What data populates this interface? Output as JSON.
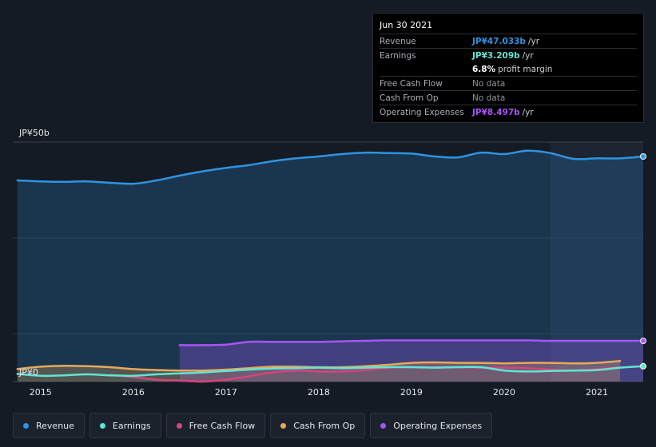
{
  "tooltip": {
    "date": "Jun 30 2021",
    "rows": [
      {
        "label": "Revenue",
        "value": "JP¥47.033b",
        "suffix": "/yr"
      },
      {
        "label": "Earnings",
        "value": "JP¥3.209b",
        "suffix": "/yr"
      },
      {
        "label": "",
        "value": "6.8%",
        "suffix": "profit margin"
      },
      {
        "label": "Free Cash Flow",
        "value": "No data",
        "suffix": ""
      },
      {
        "label": "Cash From Op",
        "value": "No data",
        "suffix": ""
      },
      {
        "label": "Operating Expenses",
        "value": "JP¥8.497b",
        "suffix": "/yr"
      }
    ]
  },
  "legend": [
    {
      "label": "Revenue",
      "color": "#2e94e3"
    },
    {
      "label": "Earnings",
      "color": "#5ee6d6"
    },
    {
      "label": "Free Cash Flow",
      "color": "#d6457a"
    },
    {
      "label": "Cash From Op",
      "color": "#e8a95a"
    },
    {
      "label": "Operating Expenses",
      "color": "#a855f7"
    }
  ],
  "chart_data": {
    "type": "area",
    "y_top_label": "JP¥50b",
    "y_bottom_label": "JP¥0",
    "ylim": [
      0,
      50
    ],
    "xlim": [
      2014.7,
      2021.5
    ],
    "x_ticks": [
      "2015",
      "2016",
      "2017",
      "2018",
      "2019",
      "2020",
      "2021"
    ],
    "highlight_from": 2020.5,
    "series": [
      {
        "name": "Revenue",
        "color": "#2e94e3",
        "fill": true,
        "x": [
          2014.75,
          2015.0,
          2015.25,
          2015.5,
          2015.75,
          2016.0,
          2016.25,
          2016.5,
          2016.75,
          2017.0,
          2017.25,
          2017.5,
          2017.75,
          2018.0,
          2018.25,
          2018.5,
          2018.75,
          2019.0,
          2019.25,
          2019.5,
          2019.75,
          2020.0,
          2020.25,
          2020.5,
          2020.75,
          2021.0,
          2021.25,
          2021.5
        ],
        "y": [
          42.0,
          41.8,
          41.7,
          41.8,
          41.5,
          41.3,
          42.0,
          43.0,
          43.9,
          44.6,
          45.2,
          46.0,
          46.6,
          47.0,
          47.5,
          47.8,
          47.7,
          47.6,
          47.0,
          46.8,
          47.8,
          47.5,
          48.2,
          47.7,
          46.5,
          46.6,
          46.6,
          47.0
        ]
      },
      {
        "name": "Operating Expenses",
        "color": "#a855f7",
        "fill": true,
        "x": [
          2016.5,
          2016.75,
          2017.0,
          2017.25,
          2017.5,
          2017.75,
          2018.0,
          2018.25,
          2018.5,
          2018.75,
          2019.0,
          2019.25,
          2019.5,
          2019.75,
          2020.0,
          2020.25,
          2020.5,
          2020.75,
          2021.0,
          2021.25,
          2021.5
        ],
        "y": [
          7.6,
          7.6,
          7.7,
          8.3,
          8.3,
          8.3,
          8.3,
          8.4,
          8.5,
          8.6,
          8.6,
          8.6,
          8.6,
          8.6,
          8.6,
          8.6,
          8.5,
          8.5,
          8.5,
          8.5,
          8.5
        ]
      },
      {
        "name": "Cash From Op",
        "color": "#e8a95a",
        "fill": true,
        "x": [
          2014.75,
          2015.0,
          2015.25,
          2015.5,
          2015.75,
          2016.0,
          2016.25,
          2016.5,
          2016.75,
          2017.0,
          2017.25,
          2017.5,
          2017.75,
          2018.0,
          2018.25,
          2018.5,
          2018.75,
          2019.0,
          2019.25,
          2019.5,
          2019.75,
          2020.0,
          2020.25,
          2020.5,
          2020.75,
          2021.0,
          2021.25
        ],
        "y": [
          2.6,
          3.1,
          3.3,
          3.2,
          3.0,
          2.6,
          2.4,
          2.3,
          2.3,
          2.5,
          2.8,
          3.1,
          3.1,
          3.0,
          3.0,
          3.2,
          3.5,
          3.9,
          4.0,
          3.9,
          3.9,
          3.8,
          3.9,
          3.9,
          3.8,
          3.9,
          4.3
        ]
      },
      {
        "name": "Free Cash Flow",
        "color": "#d6457a",
        "fill": false,
        "x": [
          2015.75,
          2016.0,
          2016.25,
          2016.5,
          2016.75,
          2017.0,
          2017.25,
          2017.5,
          2017.75,
          2018.0,
          2018.25,
          2018.5,
          2018.75,
          2019.0,
          2019.25,
          2019.5,
          2019.75,
          2020.0,
          2020.25,
          2020.5,
          2020.75,
          2021.0,
          2021.25
        ],
        "y": [
          1.4,
          0.9,
          0.4,
          0.2,
          0.0,
          0.4,
          1.1,
          1.9,
          2.3,
          2.1,
          2.1,
          2.4,
          2.9,
          3.0,
          3.0,
          3.0,
          2.9,
          2.9,
          2.8,
          2.5,
          2.3,
          2.6,
          3.0
        ]
      },
      {
        "name": "Earnings",
        "color": "#5ee6d6",
        "fill": false,
        "x": [
          2014.75,
          2015.0,
          2015.25,
          2015.5,
          2015.75,
          2016.0,
          2016.25,
          2016.5,
          2016.75,
          2017.0,
          2017.25,
          2017.5,
          2017.75,
          2018.0,
          2018.25,
          2018.5,
          2018.75,
          2019.0,
          2019.25,
          2019.5,
          2019.75,
          2020.0,
          2020.25,
          2020.5,
          2020.75,
          2021.0,
          2021.25,
          2021.5
        ],
        "y": [
          1.6,
          1.2,
          1.3,
          1.5,
          1.3,
          1.2,
          1.5,
          1.7,
          1.9,
          2.2,
          2.5,
          2.7,
          2.8,
          2.9,
          2.8,
          2.9,
          3.0,
          3.0,
          2.9,
          3.0,
          3.0,
          2.3,
          2.1,
          2.2,
          2.3,
          2.4,
          2.9,
          3.2
        ]
      }
    ]
  }
}
